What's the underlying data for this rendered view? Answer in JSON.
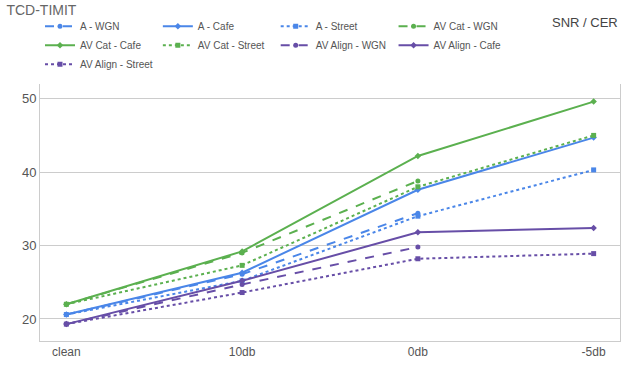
{
  "chart_data": {
    "type": "line",
    "title": "TCD-TIMIT",
    "annotations": [
      "SNR / CER"
    ],
    "categories": [
      "clean",
      "10db",
      "0db",
      "-5db"
    ],
    "ylim": [
      17,
      52
    ],
    "yticks": [
      20,
      30,
      40,
      50
    ],
    "grid": true,
    "legend": "top",
    "series": [
      {
        "name": "A - WGN",
        "color": "#4a86e8",
        "marker": "circle",
        "line_style": "dash",
        "values": [
          20.6,
          26.1,
          34.4,
          null
        ]
      },
      {
        "name": "A - Cafe",
        "color": "#4a86e8",
        "marker": "diamond",
        "line_style": "solid",
        "values": [
          20.6,
          26.3,
          37.6,
          44.7
        ]
      },
      {
        "name": "A - Street",
        "color": "#4a86e8",
        "marker": "square",
        "line_style": "dot",
        "values": [
          20.6,
          25.2,
          34.0,
          40.3
        ]
      },
      {
        "name": "AV Cat - WGN",
        "color": "#5bb04f",
        "marker": "circle",
        "line_style": "dash",
        "values": [
          22.0,
          29.0,
          38.8,
          null
        ]
      },
      {
        "name": "AV Cat - Cafe",
        "color": "#5bb04f",
        "marker": "diamond",
        "line_style": "solid",
        "values": [
          22.0,
          29.2,
          42.2,
          49.6
        ]
      },
      {
        "name": "AV Cat - Street",
        "color": "#5bb04f",
        "marker": "square",
        "line_style": "dot",
        "values": [
          22.0,
          27.3,
          38.0,
          45.0
        ]
      },
      {
        "name": "AV Align - WGN",
        "color": "#674ea7",
        "marker": "circle",
        "line_style": "dash",
        "values": [
          19.3,
          24.7,
          29.8,
          null
        ]
      },
      {
        "name": "AV Align - Cafe",
        "color": "#674ea7",
        "marker": "diamond",
        "line_style": "solid",
        "values": [
          19.3,
          25.2,
          31.8,
          32.4
        ]
      },
      {
        "name": "AV Align - Street",
        "color": "#674ea7",
        "marker": "square",
        "line_style": "dot",
        "values": [
          19.3,
          23.6,
          28.2,
          28.9
        ]
      }
    ]
  }
}
